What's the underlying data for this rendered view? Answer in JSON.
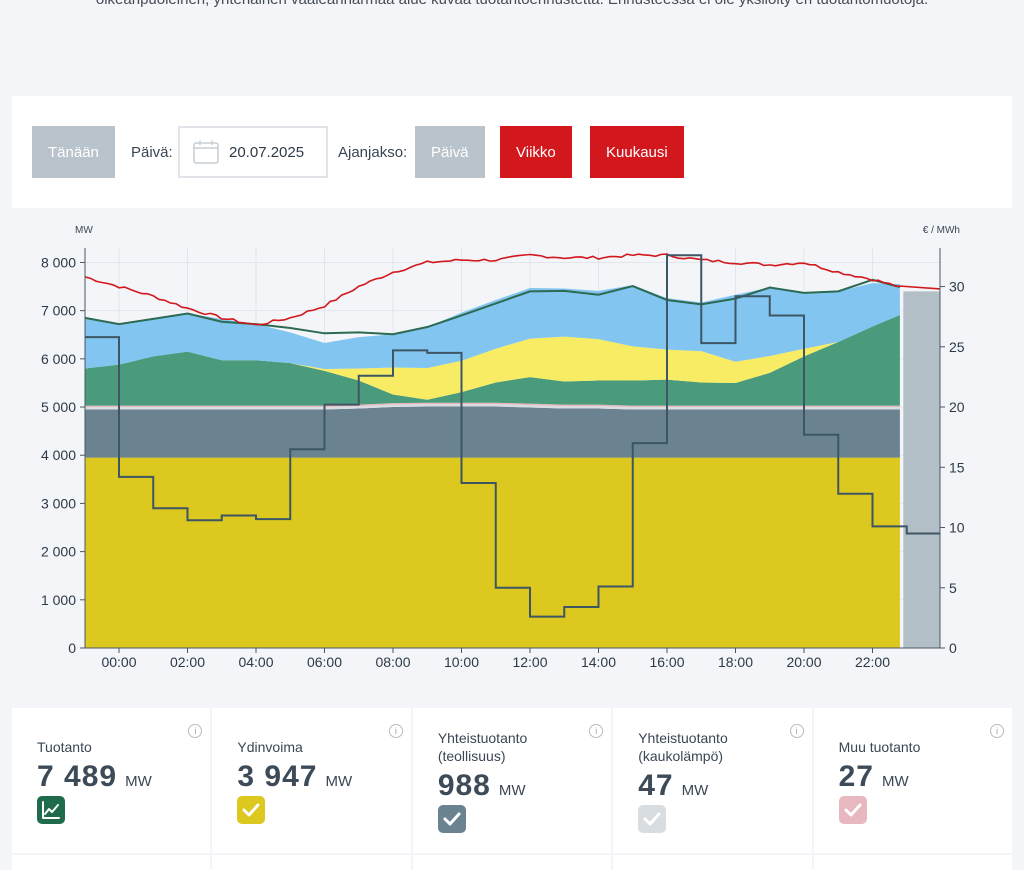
{
  "intro_text": "oikeanpuoleinen, yhtenäinen vaaleanharmaa alue kuvaa tuotantoennustetta. Ennusteessa ei ole yksilöity eri tuotantomuotoja.",
  "controls": {
    "today_label": "Tänään",
    "date_label": "Päivä:",
    "date_value": "20.07.2025",
    "period_label": "Ajanjakso:",
    "period_day": "Päivä",
    "period_week": "Viikko",
    "period_month": "Kuukausi"
  },
  "colors": {
    "nuclear": "#dcc81e",
    "industrial_chp": "#6b8290",
    "district_chp": "#d8dde2",
    "other": "#e8b8c0",
    "hydro": "#4a9a7c",
    "solar": "#f8ec64",
    "wind": "#82c5f0",
    "forecast": "#b3bfc6",
    "total_line": "#2d6a52",
    "consumption_line": "#d2171d",
    "price_line": "#3d5664"
  },
  "chart_data": {
    "type": "area",
    "title": "",
    "left_axis_unit": "MW",
    "right_axis_unit": "€ / MWh",
    "ylim_left": [
      0,
      8300
    ],
    "ylim_right": [
      0,
      33.2
    ],
    "yticks_left": [
      "0",
      "1 000",
      "2 000",
      "3 000",
      "4 000",
      "5 000",
      "6 000",
      "7 000",
      "8 000"
    ],
    "yticks_right": [
      "0",
      "5",
      "10",
      "15",
      "20",
      "25",
      "30"
    ],
    "xticks": [
      "00:00",
      "02:00",
      "04:00",
      "06:00",
      "08:00",
      "10:00",
      "12:00",
      "14:00",
      "16:00",
      "18:00",
      "20:00",
      "22:00"
    ],
    "x_hours": [
      -1,
      0,
      1,
      2,
      3,
      4,
      5,
      6,
      7,
      8,
      9,
      10,
      11,
      12,
      13,
      14,
      15,
      16,
      17,
      18,
      19,
      20,
      21,
      22,
      23
    ],
    "series": {
      "nuclear": [
        3950,
        3950,
        3950,
        3950,
        3950,
        3950,
        3950,
        3950,
        3950,
        3950,
        3950,
        3950,
        3950,
        3950,
        3950,
        3950,
        3950,
        3950,
        3950,
        3950,
        3950,
        3950,
        3950,
        3950,
        3950
      ],
      "industrial_chp": [
        1000,
        1000,
        1000,
        1000,
        1000,
        1000,
        1000,
        1000,
        1020,
        1050,
        1060,
        1060,
        1060,
        1040,
        1020,
        1020,
        1000,
        1000,
        1000,
        1000,
        1000,
        1000,
        1000,
        1000,
        1000
      ],
      "district_chp": [
        50,
        50,
        50,
        50,
        50,
        50,
        50,
        50,
        50,
        50,
        50,
        50,
        50,
        50,
        50,
        50,
        50,
        50,
        50,
        50,
        50,
        50,
        50,
        50,
        50
      ],
      "other": [
        30,
        30,
        30,
        30,
        30,
        30,
        30,
        30,
        30,
        30,
        30,
        30,
        30,
        30,
        30,
        30,
        30,
        30,
        30,
        30,
        30,
        30,
        30,
        30,
        30
      ],
      "hydro": [
        770,
        850,
        1020,
        1120,
        940,
        940,
        880,
        720,
        500,
        180,
        60,
        220,
        420,
        550,
        480,
        500,
        520,
        540,
        480,
        470,
        680,
        1020,
        1320,
        1640,
        1880
      ],
      "solar": [
        0,
        0,
        0,
        0,
        0,
        0,
        0,
        40,
        250,
        560,
        660,
        650,
        700,
        800,
        930,
        860,
        710,
        620,
        650,
        440,
        350,
        160,
        0,
        0,
        0
      ],
      "wind": [
        1050,
        840,
        780,
        790,
        860,
        750,
        640,
        540,
        650,
        690,
        850,
        1000,
        1010,
        1050,
        1000,
        1000,
        1270,
        1070,
        1010,
        1390,
        1420,
        1170,
        1050,
        900,
        640
      ]
    },
    "total_production": [
      6850,
      6720,
      6830,
      6940,
      6770,
      6720,
      6640,
      6530,
      6550,
      6510,
      6660,
      6900,
      7150,
      7400,
      7410,
      7330,
      7510,
      7220,
      7130,
      7250,
      7480,
      7370,
      7400,
      7640,
      7490
    ],
    "consumption": [
      7700,
      7500,
      7300,
      7050,
      6850,
      6700,
      6850,
      7100,
      7500,
      7800,
      8000,
      8050,
      8050,
      8150,
      8100,
      8100,
      8150,
      8150,
      8050,
      8000,
      7950,
      8000,
      7800,
      7650,
      7450
    ],
    "forecast_hour": 23,
    "forecast_value": 7400,
    "price_hours": [
      -1,
      0,
      1,
      2,
      3,
      4,
      5,
      6,
      7,
      8,
      9,
      10,
      11,
      12,
      13,
      14,
      15,
      16,
      17,
      18,
      19,
      20,
      21,
      22,
      23
    ],
    "price": [
      25.8,
      14.2,
      11.6,
      10.6,
      11.0,
      10.7,
      16.5,
      20.2,
      22.6,
      24.7,
      24.5,
      13.7,
      5.0,
      2.6,
      3.4,
      5.1,
      17.0,
      32.6,
      25.3,
      29.2,
      27.6,
      17.7,
      12.8,
      10.1,
      9.5
    ]
  },
  "cards": [
    {
      "title": "Tuotanto",
      "value": "7 489",
      "unit": "MW",
      "badge_color": "#1f6b4c",
      "badge_icon": "chart-line-icon"
    },
    {
      "title": "Ydinvoima",
      "value": "3 947",
      "unit": "MW",
      "badge_color": "#dcc81e",
      "badge_icon": "check-icon"
    },
    {
      "title": "Yhteistuotanto (teollisuus)",
      "value": "988",
      "unit": "MW",
      "badge_color": "#6b8290",
      "badge_icon": "check-icon"
    },
    {
      "title": "Yhteistuotanto (kaukolämpö)",
      "value": "47",
      "unit": "MW",
      "badge_color": "#d8dde2",
      "badge_icon": "check-icon"
    },
    {
      "title": "Muu tuotanto",
      "value": "27",
      "unit": "MW",
      "badge_color": "#e8b8c0",
      "badge_icon": "check-icon"
    }
  ]
}
